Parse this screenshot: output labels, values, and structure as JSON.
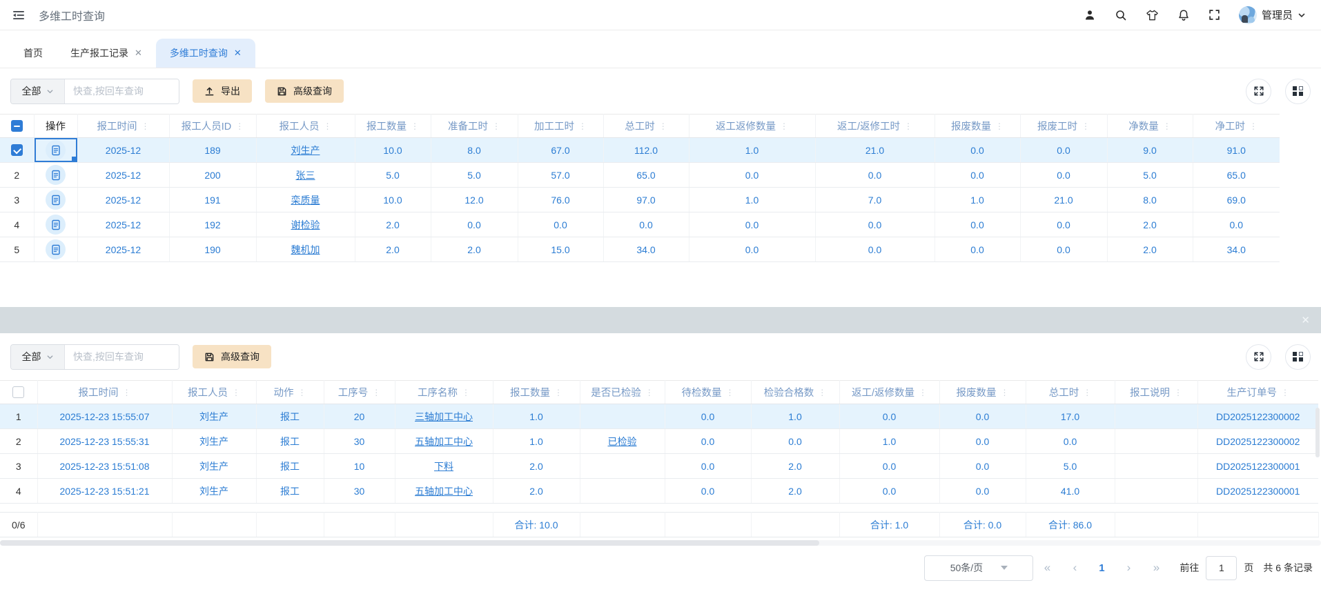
{
  "app": {
    "title": "多维工时查询",
    "user": "管理员"
  },
  "colors": {
    "accent": "#2e7cd6",
    "header_text": "#7699c6",
    "selected_row": "#e5f3fd",
    "button": "#f7e2c4",
    "divider": "#d4dbdf"
  },
  "icons": {
    "menu": "menu-fold",
    "user": "person",
    "search": "magnifier",
    "theme": "t-shirt",
    "notifications": "bell",
    "fullscreen": "brackets",
    "expand": "arrows-out",
    "columns": "grid-2x2",
    "export": "arrow-up-from-line",
    "advanced": "floppy-save",
    "close": "✕"
  },
  "tabs": [
    {
      "label": "首页",
      "closable": false,
      "active": false
    },
    {
      "label": "生产报工记录",
      "closable": true,
      "active": false
    },
    {
      "label": "多维工时查询",
      "closable": true,
      "active": true
    }
  ],
  "panel1": {
    "toolbar": {
      "scope": "全部",
      "search_placeholder": "快查,按回车查询",
      "export_label": "导出",
      "advanced_label": "高级查询"
    },
    "table": {
      "ops_label": "操作",
      "columns": [
        "报工时间",
        "报工人员ID",
        "报工人员",
        "报工数量",
        "准备工时",
        "加工工时",
        "总工时",
        "返工返修数量",
        "返工/返修工时",
        "报废数量",
        "报废工时",
        "净数量",
        "净工时"
      ],
      "rows": [
        {
          "num": "1",
          "selected": true,
          "cells": [
            "2025-12",
            "189",
            "刘生产",
            "10.0",
            "8.0",
            "67.0",
            "112.0",
            "1.0",
            "21.0",
            "0.0",
            "0.0",
            "9.0",
            "91.0"
          ]
        },
        {
          "num": "2",
          "selected": false,
          "cells": [
            "2025-12",
            "200",
            "张三",
            "5.0",
            "5.0",
            "57.0",
            "65.0",
            "0.0",
            "0.0",
            "0.0",
            "0.0",
            "5.0",
            "65.0"
          ]
        },
        {
          "num": "3",
          "selected": false,
          "cells": [
            "2025-12",
            "191",
            "栾质量",
            "10.0",
            "12.0",
            "76.0",
            "97.0",
            "1.0",
            "7.0",
            "1.0",
            "21.0",
            "8.0",
            "69.0"
          ]
        },
        {
          "num": "4",
          "selected": false,
          "cells": [
            "2025-12",
            "192",
            "谢检验",
            "2.0",
            "0.0",
            "0.0",
            "0.0",
            "0.0",
            "0.0",
            "0.0",
            "0.0",
            "2.0",
            "0.0"
          ]
        },
        {
          "num": "5",
          "selected": false,
          "cells": [
            "2025-12",
            "190",
            "魏机加",
            "2.0",
            "2.0",
            "15.0",
            "34.0",
            "0.0",
            "0.0",
            "0.0",
            "0.0",
            "2.0",
            "34.0"
          ]
        }
      ]
    }
  },
  "divider": {
    "close": "✕"
  },
  "panel2": {
    "toolbar": {
      "scope": "全部",
      "search_placeholder": "快查,按回车查询",
      "advanced_label": "高级查询"
    },
    "table": {
      "columns": [
        "报工时间",
        "报工人员",
        "动作",
        "工序号",
        "工序名称",
        "报工数量",
        "是否已检验",
        "待检数量",
        "检验合格数",
        "返工/返修数量",
        "报废数量",
        "总工时",
        "报工说明",
        "生产订单号"
      ],
      "rows": [
        {
          "num": "1",
          "current": true,
          "cells": [
            "2025-12-23 15:55:07",
            "刘生产",
            "报工",
            "20",
            "三轴加工中心",
            "1.0",
            "",
            "0.0",
            "1.0",
            "0.0",
            "0.0",
            "17.0",
            "",
            "DD2025122300002"
          ]
        },
        {
          "num": "2",
          "current": false,
          "cells": [
            "2025-12-23 15:55:31",
            "刘生产",
            "报工",
            "30",
            "五轴加工中心",
            "1.0",
            "已检验",
            "0.0",
            "0.0",
            "1.0",
            "0.0",
            "0.0",
            "",
            "DD2025122300002"
          ]
        },
        {
          "num": "3",
          "current": false,
          "cells": [
            "2025-12-23 15:51:08",
            "刘生产",
            "报工",
            "10",
            "下料",
            "2.0",
            "",
            "0.0",
            "2.0",
            "0.0",
            "0.0",
            "5.0",
            "",
            "DD2025122300001"
          ]
        },
        {
          "num": "4",
          "current": false,
          "cells": [
            "2025-12-23 15:51:21",
            "刘生产",
            "报工",
            "30",
            "五轴加工中心",
            "2.0",
            "",
            "0.0",
            "2.0",
            "0.0",
            "0.0",
            "41.0",
            "",
            "DD2025122300001"
          ]
        }
      ],
      "summary": {
        "label": "0/6",
        "cells": [
          "",
          "",
          "",
          "",
          "",
          "合计: 10.0",
          "",
          "",
          "",
          "合计: 1.0",
          "合计: 0.0",
          "合计: 86.0",
          "",
          ""
        ]
      }
    }
  },
  "pagination": {
    "page_size": "50条/页",
    "first": "«",
    "prev": "‹",
    "current": "1",
    "next": "›",
    "last": "»",
    "goto_label": "前往",
    "goto_value": "1",
    "page_unit": "页",
    "total": "共 6 条记录"
  }
}
